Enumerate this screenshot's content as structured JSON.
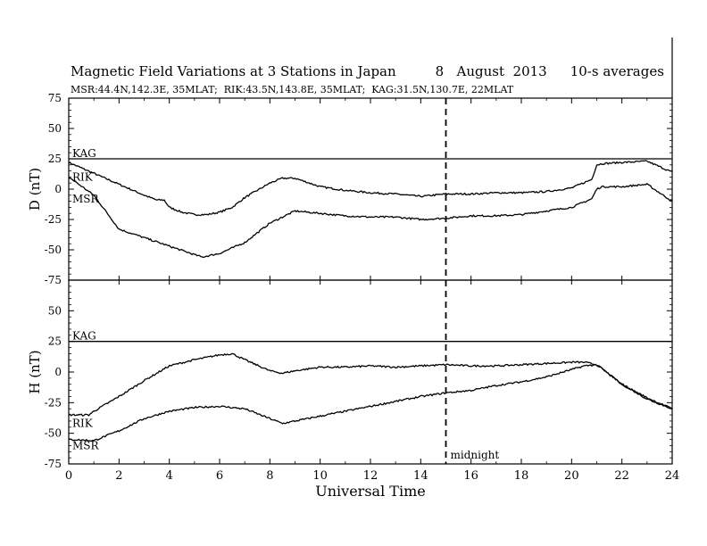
{
  "title_main": "Magnetic Field Variations at 3 Stations in Japan",
  "title_date": "8   August  2013",
  "title_avg": "10-s averages",
  "subtitle": "MSR:44.4N,142.3E, 35MLAT;  RIK:43.5N,143.8E, 35MLAT;  KAG:31.5N,130.7E, 22MLAT",
  "chart_data": {
    "type": "line",
    "xlabel": "Universal Time",
    "xlim": [
      0,
      24
    ],
    "xticks": [
      0,
      2,
      4,
      6,
      8,
      10,
      12,
      14,
      16,
      18,
      20,
      22,
      24
    ],
    "annotation": {
      "text": "midnight",
      "x": 15
    },
    "panels": [
      {
        "ylabel": "D (nT)",
        "ylim": [
          -75,
          75
        ],
        "yticks": [
          75,
          50,
          25,
          0,
          -25,
          -50,
          -75
        ],
        "series": [
          {
            "name": "KAG",
            "x": [
              0,
              24
            ],
            "y": [
              25,
              25
            ]
          },
          {
            "name": "RIK",
            "x": [
              0,
              1,
              2,
              3,
              3.5,
              3.8,
              4,
              4.5,
              5,
              5.5,
              6,
              6.5,
              7,
              8,
              8.5,
              9,
              10,
              11,
              12,
              13,
              14,
              15,
              16,
              17,
              18,
              19,
              20,
              20.8,
              21,
              21.2,
              22,
              23,
              24
            ],
            "y": [
              22,
              13,
              4,
              -5,
              -9,
              -9,
              -15,
              -19,
              -21,
              -21,
              -19,
              -15,
              -7,
              5,
              9,
              9,
              2,
              -1,
              -3,
              -4,
              -6,
              -4,
              -4,
              -3,
              -3,
              -2,
              1,
              8,
              20,
              21,
              22,
              23,
              14
            ]
          },
          {
            "name": "MSR",
            "x": [
              0,
              1,
              2,
              3,
              4,
              5,
              5.3,
              6,
              7,
              8,
              8.5,
              9,
              10,
              11,
              12,
              13,
              14,
              15,
              16,
              17,
              18,
              19,
              20,
              20.8,
              21,
              21.2,
              22,
              23,
              24
            ],
            "y": [
              10,
              -5,
              -33,
              -40,
              -47,
              -54,
              -56,
              -53,
              -44,
              -28,
              -23,
              -18,
              -20,
              -22,
              -23,
              -23,
              -25,
              -24,
              -22,
              -22,
              -21,
              -18,
              -15,
              -8,
              0,
              2,
              2,
              4,
              -10
            ]
          }
        ]
      },
      {
        "ylabel": "H (nT)",
        "ylim": [
          -75,
          75
        ],
        "yticks": [
          75,
          50,
          25,
          0,
          -25,
          -50,
          -75
        ],
        "series": [
          {
            "name": "KAG",
            "x": [
              0,
              24
            ],
            "y": [
              25,
              25
            ]
          },
          {
            "name": "RIK",
            "x": [
              0,
              0.8,
              1,
              2,
              3,
              4,
              5,
              6,
              6.5,
              7,
              8,
              8.5,
              9,
              10,
              11,
              12,
              13,
              14,
              15,
              16,
              17,
              18,
              19,
              20,
              20.5,
              21,
              22,
              23,
              24
            ],
            "y": [
              -35,
              -35,
              -32,
              -20,
              -7,
              5,
              10,
              14,
              15,
              10,
              1,
              -1,
              1,
              4,
              4,
              5,
              4,
              5,
              6,
              5,
              5,
              6,
              7,
              8,
              8,
              6,
              -10,
              -22,
              -30
            ]
          },
          {
            "name": "MSR",
            "x": [
              0,
              1,
              1.5,
              2,
              3,
              4,
              5,
              6,
              6.5,
              7,
              8,
              8.5,
              9,
              10,
              11,
              12,
              13,
              14,
              15,
              16,
              17,
              18,
              19,
              20,
              20.5,
              21,
              22,
              23,
              24
            ],
            "y": [
              -55,
              -56,
              -52,
              -48,
              -38,
              -32,
              -29,
              -28,
              -29,
              -30,
              -38,
              -42,
              -40,
              -36,
              -32,
              -28,
              -24,
              -20,
              -17,
              -15,
              -11,
              -8,
              -4,
              2,
              5,
              6,
              -10,
              -21,
              -30
            ]
          }
        ]
      }
    ]
  }
}
